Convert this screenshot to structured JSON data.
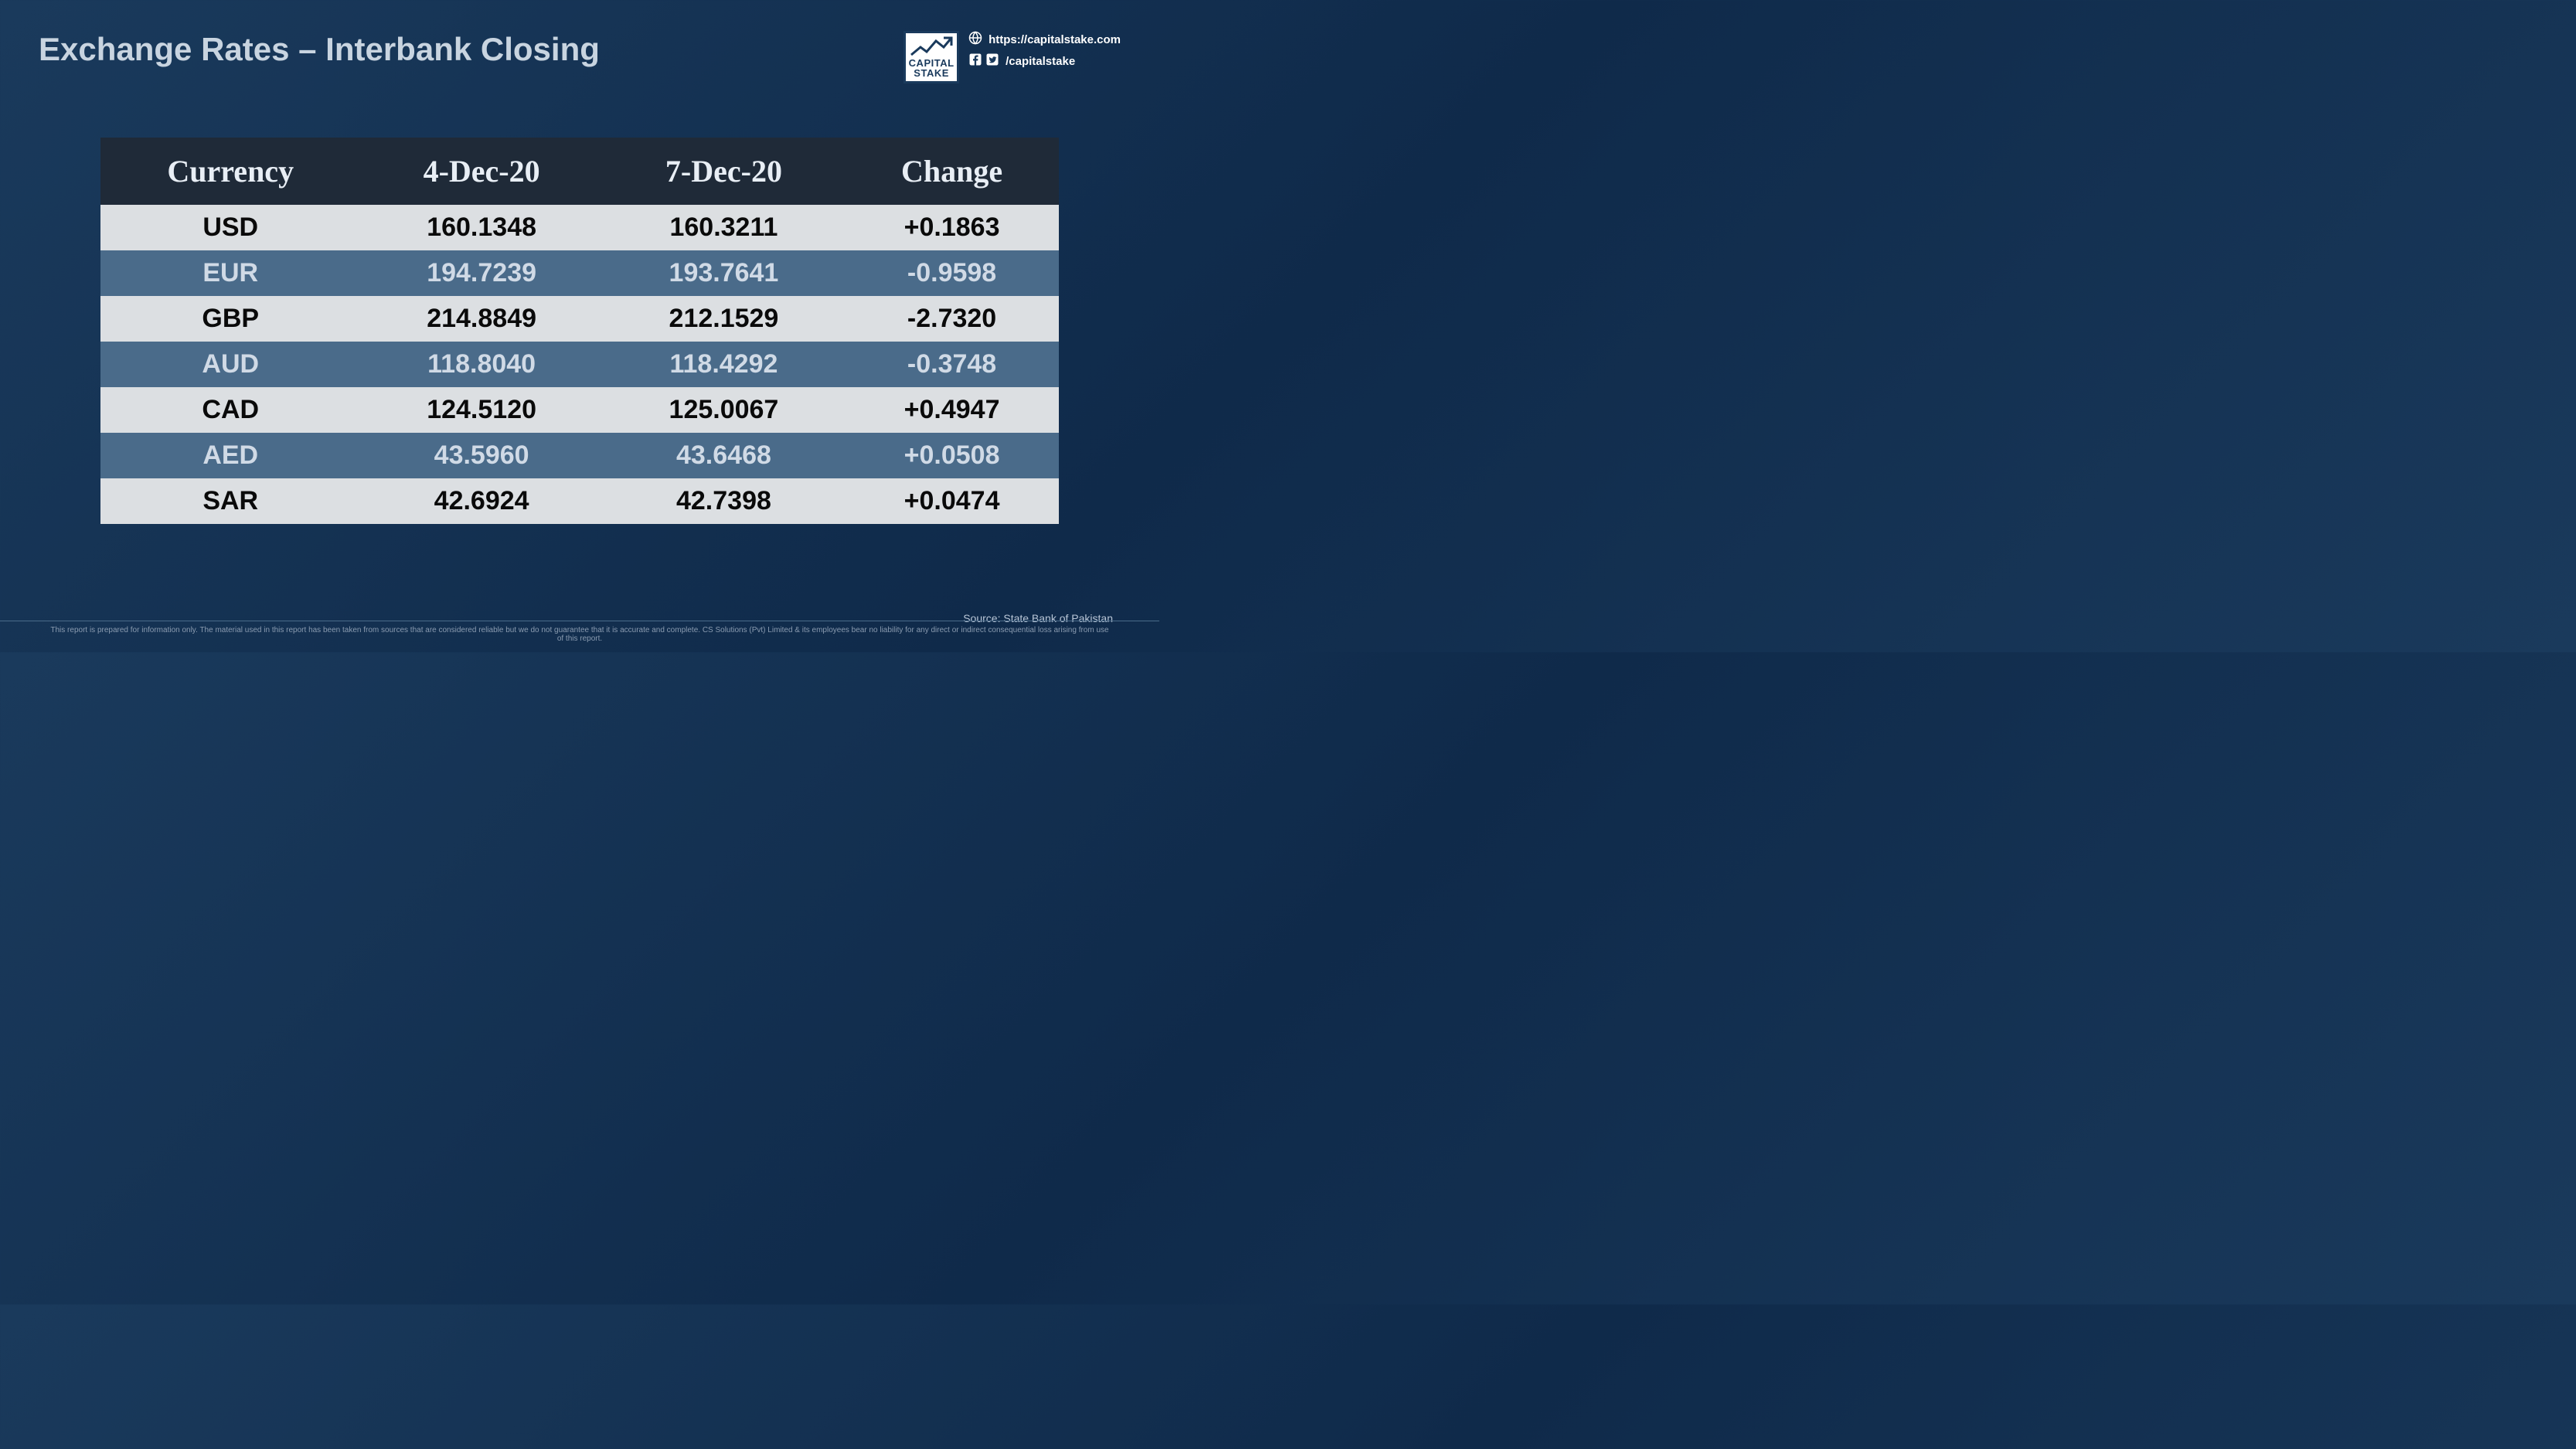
{
  "title": "Exchange Rates – Interbank Closing",
  "brand": {
    "logo_line1": "CAPITAL",
    "logo_line2": "STAKE",
    "website": "https://capitalstake.com",
    "handle": "/capitalstake"
  },
  "table": {
    "columns": [
      "Currency",
      "4-Dec-20",
      "7-Dec-20",
      "Change"
    ],
    "rows": [
      {
        "cells": [
          "USD",
          "160.1348",
          "160.3211",
          "+0.1863"
        ],
        "style": "light"
      },
      {
        "cells": [
          "EUR",
          "194.7239",
          "193.7641",
          "-0.9598"
        ],
        "style": "dark"
      },
      {
        "cells": [
          "GBP",
          "214.8849",
          "212.1529",
          "-2.7320"
        ],
        "style": "light"
      },
      {
        "cells": [
          "AUD",
          "118.8040",
          "118.4292",
          "-0.3748"
        ],
        "style": "dark"
      },
      {
        "cells": [
          "CAD",
          "124.5120",
          "125.0067",
          "+0.4947"
        ],
        "style": "light"
      },
      {
        "cells": [
          "AED",
          "43.5960",
          "43.6468",
          "+0.0508"
        ],
        "style": "dark"
      },
      {
        "cells": [
          "SAR",
          "42.6924",
          "42.7398",
          "+0.0474"
        ],
        "style": "light"
      }
    ],
    "header_bg": "#1f2a38",
    "header_color": "#e8eef5",
    "row_light_bg": "#dcdfe2",
    "row_light_color": "#0a0a0a",
    "row_dark_bg": "#4a6b8a",
    "row_dark_color": "#d0dae6",
    "header_fontsize": 40,
    "cell_fontsize": 34
  },
  "source": "Source: State Bank of Pakistan",
  "disclaimer": "This report is prepared for information only. The material used in this report has been taken from sources that are considered reliable but we do not guarantee that it is accurate and complete. CS Solutions (Pvt) Limited & its employees bear no liability for any direct or indirect consequential loss arising from use of this report.",
  "colors": {
    "background_gradient_from": "#1a3a5c",
    "background_gradient_to": "#0f2a4a",
    "title_color": "#c8d4e0",
    "source_color": "#b8c5d6",
    "disclaimer_color": "#8a9bb0"
  }
}
